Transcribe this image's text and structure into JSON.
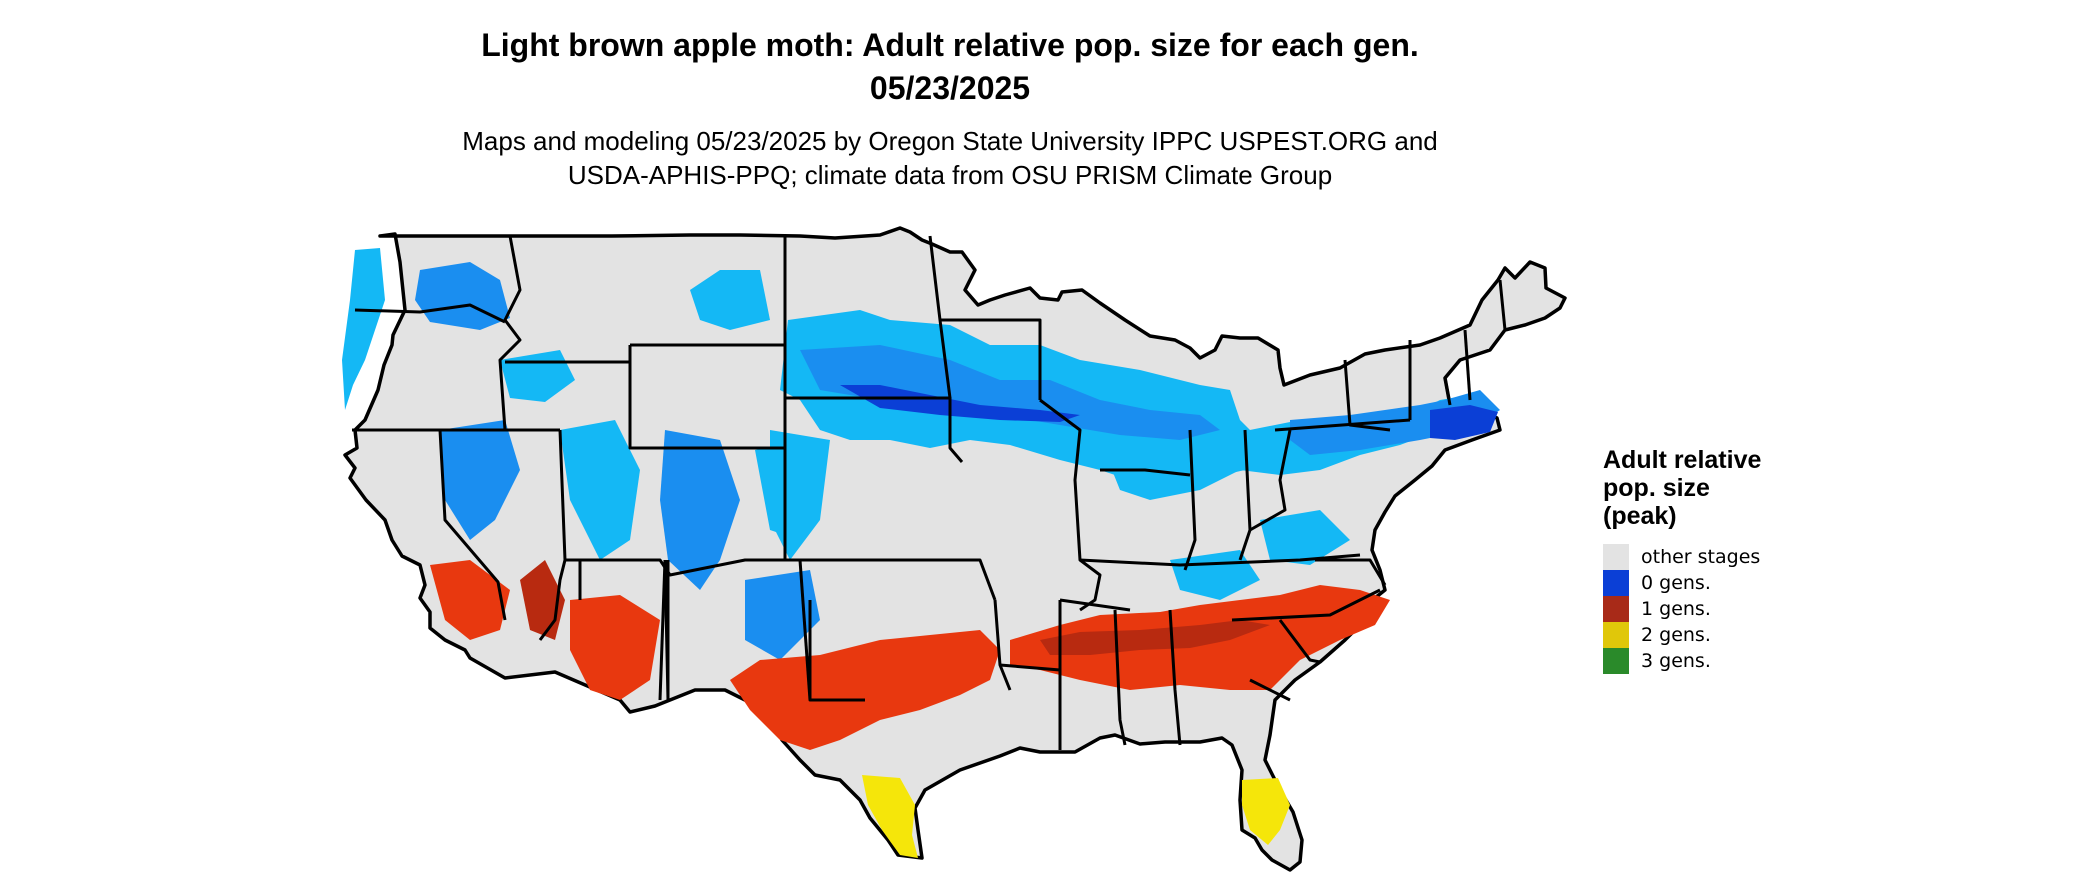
{
  "title": {
    "line1": "Light brown apple moth: Adult relative pop. size for each gen.",
    "line2": "05/23/2025"
  },
  "subtitle": {
    "line1": "Maps and modeling 05/23/2025 by Oregon State University IPPC USPEST.ORG and",
    "line2": "USDA-APHIS-PPQ; climate data from OSU PRISM Climate Group"
  },
  "legend": {
    "title_lines": [
      "Adult relative",
      "pop. size",
      "(peak)"
    ],
    "items": [
      {
        "label": "other stages",
        "color": "#e3e3e3"
      },
      {
        "label": "0 gens.",
        "color": "#0b3fd6"
      },
      {
        "label": "1 gens.",
        "color": "#a82a18"
      },
      {
        "label": "2 gens.",
        "color": "#e0c70a"
      },
      {
        "label": "3 gens.",
        "color": "#2a8a2a"
      }
    ]
  },
  "map_colors": {
    "land": "#e3e3e3",
    "border": "#000000",
    "light_blue": "#14b8f5",
    "mid_blue": "#1a8ef0",
    "dark_blue": "#0b3fd6",
    "red_orange": "#e8380f",
    "dark_red": "#b82a10",
    "yellow": "#f5e60a"
  }
}
